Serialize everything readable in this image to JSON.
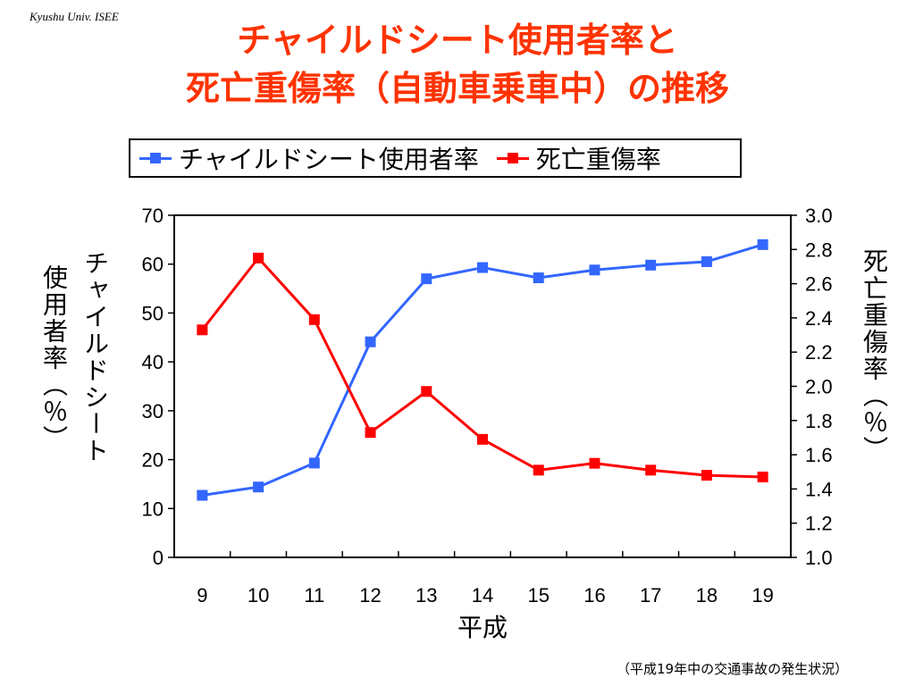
{
  "credit": "Kyushu Univ. ISEE",
  "title_line1": "チャイルドシート使用者率と",
  "title_line2": "死亡重傷率（自動車乗車中）の推移",
  "source_note": "（平成19年中の交通事故の発生状況）",
  "colors": {
    "title": "#ff3300",
    "usage": "#3366ff",
    "injury": "#ff0000"
  },
  "chart_data": {
    "type": "line",
    "x": [
      "9",
      "10",
      "11",
      "12",
      "13",
      "14",
      "15",
      "16",
      "17",
      "18",
      "19"
    ],
    "xlabel": "平成",
    "y_left_label": "チャイルドシート使用者率（％）",
    "y_right_label": "死亡重傷率（％）",
    "y_left": {
      "range": [
        0,
        70
      ],
      "ticks": [
        "0",
        "10",
        "20",
        "30",
        "40",
        "50",
        "60",
        "70"
      ]
    },
    "y_right": {
      "range": [
        1.0,
        3.0
      ],
      "ticks": [
        "1.0",
        "1.2",
        "1.4",
        "1.6",
        "1.8",
        "2.0",
        "2.2",
        "2.4",
        "2.6",
        "2.8",
        "3.0"
      ]
    },
    "series": [
      {
        "name": "チャイルドシート使用者率",
        "axis": "left",
        "color": "#3366ff",
        "marker": "square",
        "values": [
          12.7,
          14.4,
          19.3,
          44.1,
          57.0,
          59.3,
          57.2,
          58.8,
          59.8,
          60.5,
          64.0
        ]
      },
      {
        "name": "死亡重傷率",
        "axis": "right",
        "color": "#ff0000",
        "marker": "square",
        "values": [
          2.33,
          2.75,
          2.39,
          1.73,
          1.97,
          1.69,
          1.51,
          1.55,
          1.51,
          1.48,
          1.47
        ]
      }
    ],
    "grid": false,
    "legend_position": "top"
  }
}
